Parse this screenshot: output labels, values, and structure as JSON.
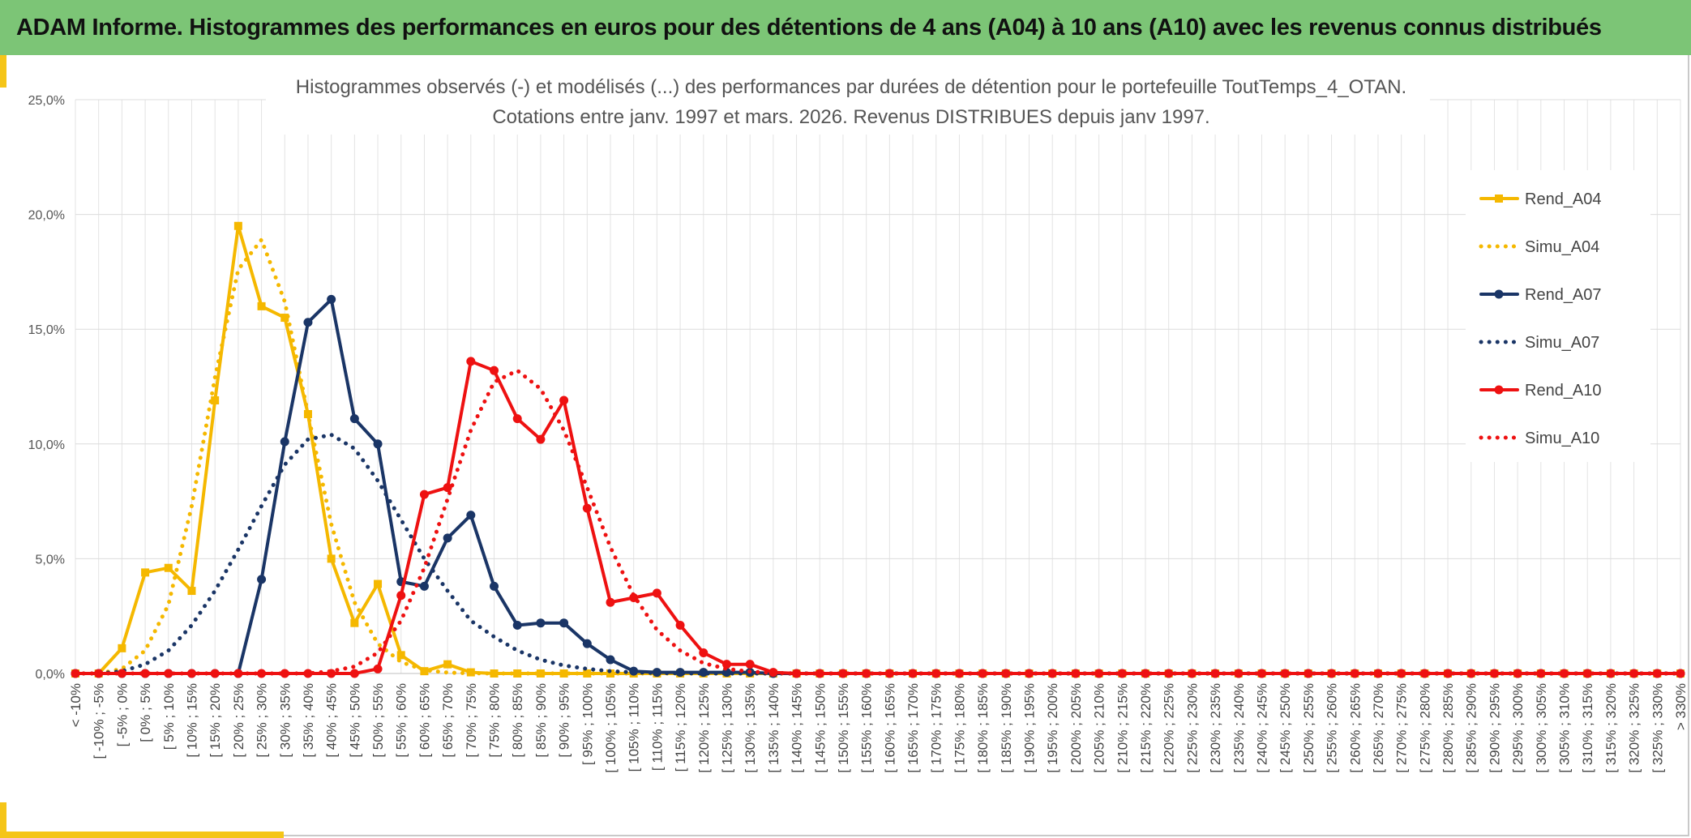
{
  "header": {
    "title": "ADAM Informe. Histogrammes des performances en euros pour des détentions de 4 ans (A04) à 10 ans (A10) avec les revenus connus distribués"
  },
  "colors": {
    "banner": "#7cc576",
    "accent": "#f5c518",
    "A04": "#f5b800",
    "A07": "#1a3566",
    "A10": "#ee1111"
  },
  "chart_data": {
    "type": "line",
    "title_line1": "Histogrammes observés (-) et modélisés (...) des performances par durées de détention pour le portefeuille ToutTemps_4_OTAN.",
    "title_line2": "Cotations entre janv. 1997 et mars. 2026. Revenus DISTRIBUES depuis janv 1997.",
    "ylim": [
      0,
      25
    ],
    "y_ticks": [
      "0,0%",
      "5,0%",
      "10,0%",
      "15,0%",
      "20,0%",
      "25,0%"
    ],
    "grid": true,
    "legend_position": "right",
    "categories": [
      "< -10%",
      "[ -10% ; -5%",
      "[ -5% ; 0%",
      "[ 0% ; 5%",
      "[ 5% ; 10%",
      "[ 10% ; 15%",
      "[ 15% ; 20%",
      "[ 20% ; 25%",
      "[ 25% ; 30%",
      "[ 30% ; 35%",
      "[ 35% ; 40%",
      "[ 40% ; 45%",
      "[ 45% ; 50%",
      "[ 50% ; 55%",
      "[ 55% ; 60%",
      "[ 60% ; 65%",
      "[ 65% ; 70%",
      "[ 70% ; 75%",
      "[ 75% ; 80%",
      "[ 80% ; 85%",
      "[ 85% ; 90%",
      "[ 90% ; 95%",
      "[ 95% ; 100%",
      "[ 100% ; 105%",
      "[ 105% ; 110%",
      "[ 110% ; 115%",
      "[ 115% ; 120%",
      "[ 120% ; 125%",
      "[ 125% ; 130%",
      "[ 130% ; 135%",
      "[ 135% ; 140%",
      "[ 140% ; 145%",
      "[ 145% ; 150%",
      "[ 150% ; 155%",
      "[ 155% ; 160%",
      "[ 160% ; 165%",
      "[ 165% ; 170%",
      "[ 170% ; 175%",
      "[ 175% ; 180%",
      "[ 180% ; 185%",
      "[ 185% ; 190%",
      "[ 190% ; 195%",
      "[ 195% ; 200%",
      "[ 200% ; 205%",
      "[ 205% ; 210%",
      "[ 210% ; 215%",
      "[ 215% ; 220%",
      "[ 220% ; 225%",
      "[ 225% ; 230%",
      "[ 230% ; 235%",
      "[ 235% ; 240%",
      "[ 240% ; 245%",
      "[ 245% ; 250%",
      "[ 250% ; 255%",
      "[ 255% ; 260%",
      "[ 260% ; 265%",
      "[ 265% ; 270%",
      "[ 270% ; 275%",
      "[ 275% ; 280%",
      "[ 280% ; 285%",
      "[ 285% ; 290%",
      "[ 290% ; 295%",
      "[ 295% ; 300%",
      "[ 300% ; 305%",
      "[ 305% ; 310%",
      "[ 310% ; 315%",
      "[ 315% ; 320%",
      "[ 320% ; 325%",
      "[ 325% ; 330%",
      "> 330%"
    ],
    "series": [
      {
        "name": "Rend_A04",
        "style": "solid",
        "marker": "square",
        "color": "#f5b800",
        "values": [
          0,
          0,
          1.1,
          4.4,
          4.6,
          3.6,
          11.9,
          19.5,
          16.0,
          15.5,
          11.3,
          5.0,
          2.2,
          3.9,
          0.8,
          0.1,
          0.4,
          0.05,
          0,
          0,
          0,
          0,
          0,
          0,
          0,
          0,
          0,
          0,
          0,
          0,
          0,
          0,
          0,
          0,
          0,
          0,
          0,
          0,
          0,
          0,
          0,
          0,
          0,
          0,
          0,
          0,
          0,
          0,
          0,
          0,
          0,
          0,
          0,
          0,
          0,
          0,
          0,
          0,
          0,
          0,
          0,
          0,
          0,
          0,
          0,
          0,
          0,
          0,
          0,
          0
        ]
      },
      {
        "name": "Simu_A04",
        "style": "dotted",
        "marker": "none",
        "color": "#f5b800",
        "values": [
          0,
          0,
          0.2,
          1.0,
          3.0,
          7.3,
          12.9,
          17.6,
          18.9,
          16.2,
          11.3,
          6.5,
          3.1,
          1.3,
          0.5,
          0.15,
          0.04,
          0.01,
          0,
          0,
          0,
          0,
          0,
          0,
          0,
          0,
          0,
          0,
          0,
          0,
          0,
          0,
          0,
          0,
          0,
          0,
          0,
          0,
          0,
          0,
          0,
          0,
          0,
          0,
          0,
          0,
          0,
          0,
          0,
          0,
          0,
          0,
          0,
          0,
          0,
          0,
          0,
          0,
          0,
          0,
          0,
          0,
          0,
          0,
          0,
          0,
          0,
          0,
          0,
          0
        ]
      },
      {
        "name": "Rend_A07",
        "style": "solid",
        "marker": "circle",
        "color": "#1a3566",
        "values": [
          0,
          0,
          0,
          0,
          0,
          0,
          0,
          0,
          4.1,
          10.1,
          15.3,
          16.3,
          11.1,
          10.0,
          4.0,
          3.8,
          5.9,
          6.9,
          3.8,
          2.1,
          2.2,
          2.2,
          1.3,
          0.6,
          0.1,
          0.05,
          0.05,
          0.05,
          0.05,
          0.05,
          0,
          0,
          0,
          0,
          0,
          0,
          0,
          0,
          0,
          0,
          0,
          0,
          0,
          0,
          0,
          0,
          0,
          0,
          0,
          0,
          0,
          0,
          0,
          0,
          0,
          0,
          0,
          0,
          0,
          0,
          0,
          0,
          0,
          0,
          0,
          0,
          0,
          0,
          0,
          0
        ]
      },
      {
        "name": "Simu_A07",
        "style": "dotted",
        "marker": "none",
        "color": "#1a3566",
        "values": [
          0,
          0,
          0.1,
          0.4,
          1.0,
          2.1,
          3.6,
          5.4,
          7.3,
          9.1,
          10.2,
          10.4,
          9.8,
          8.4,
          6.7,
          5.0,
          3.6,
          2.3,
          1.6,
          1.0,
          0.6,
          0.35,
          0.2,
          0.1,
          0.05,
          0.02,
          0.01,
          0,
          0,
          0,
          0,
          0,
          0,
          0,
          0,
          0,
          0,
          0,
          0,
          0,
          0,
          0,
          0,
          0,
          0,
          0,
          0,
          0,
          0,
          0,
          0,
          0,
          0,
          0,
          0,
          0,
          0,
          0,
          0,
          0,
          0,
          0,
          0,
          0,
          0,
          0,
          0,
          0,
          0,
          0
        ]
      },
      {
        "name": "Rend_A10",
        "style": "solid",
        "marker": "circle",
        "color": "#ee1111",
        "values": [
          0,
          0,
          0,
          0,
          0,
          0,
          0,
          0,
          0,
          0,
          0,
          0,
          0,
          0.2,
          3.4,
          7.8,
          8.1,
          13.6,
          13.2,
          11.1,
          10.2,
          11.9,
          7.2,
          3.1,
          3.3,
          3.5,
          2.1,
          0.9,
          0.4,
          0.4,
          0.05,
          0,
          0,
          0,
          0,
          0,
          0,
          0,
          0,
          0,
          0,
          0,
          0,
          0,
          0,
          0,
          0,
          0,
          0,
          0,
          0,
          0,
          0,
          0,
          0,
          0,
          0,
          0,
          0,
          0,
          0,
          0,
          0,
          0,
          0,
          0,
          0,
          0,
          0,
          0
        ]
      },
      {
        "name": "Simu_A10",
        "style": "dotted",
        "marker": "none",
        "color": "#ee1111",
        "values": [
          0,
          0,
          0,
          0,
          0,
          0,
          0,
          0,
          0,
          0,
          0,
          0.1,
          0.3,
          0.9,
          2.3,
          4.6,
          7.6,
          10.6,
          12.7,
          13.2,
          12.4,
          10.6,
          8.1,
          5.5,
          3.4,
          1.9,
          1.0,
          0.45,
          0.2,
          0.08,
          0.03,
          0,
          0,
          0,
          0,
          0,
          0,
          0,
          0,
          0,
          0,
          0,
          0,
          0,
          0,
          0,
          0,
          0,
          0,
          0,
          0,
          0,
          0,
          0,
          0,
          0,
          0,
          0,
          0,
          0,
          0,
          0,
          0,
          0,
          0,
          0,
          0,
          0,
          0,
          0
        ]
      }
    ]
  }
}
